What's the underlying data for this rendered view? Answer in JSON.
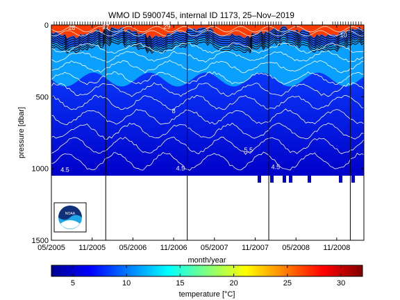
{
  "chart_data": {
    "type": "heatmap",
    "title": "WMO ID 5900745, internal ID 1173, 25–Nov–2019",
    "xlabel": "month/year",
    "ylabel": "pressure [dbar]",
    "x_ticks": [
      "05/2005",
      "11/2005",
      "05/2006",
      "11/2006",
      "05/2007",
      "11/2007",
      "05/2008",
      "11/2008"
    ],
    "y_ticks": [
      "0",
      "500",
      "1000",
      "1500"
    ],
    "y_range": [
      0,
      1500
    ],
    "y_reversed": true,
    "profile_max_pressure": 1050,
    "year_boundaries": [
      "01/2006",
      "01/2007",
      "01/2008",
      "01/2009"
    ],
    "contour_labels": [
      {
        "text": "28",
        "x": "08/2005",
        "y": 20
      },
      {
        "text": "27",
        "x": "01/2006",
        "y": 15
      },
      {
        "text": "29",
        "x": "10/2006",
        "y": 12
      },
      {
        "text": "8",
        "x": "11/2006",
        "y": 600
      },
      {
        "text": "5.5",
        "x": "10/2007",
        "y": 870
      },
      {
        "text": "4.5",
        "x": "07/2005",
        "y": 1010
      },
      {
        "text": "4.5",
        "x": "12/2006",
        "y": 1000
      },
      {
        "text": "4.5",
        "x": "02/2008",
        "y": 990
      },
      {
        "text": "10",
        "x": "12/2008",
        "y": 70
      }
    ],
    "colorbar": {
      "label": "temperature [°C]",
      "range": [
        3,
        32
      ],
      "ticks": [
        "5",
        "10",
        "15",
        "20",
        "25",
        "30"
      ],
      "colormap": "jet"
    }
  },
  "logo": {
    "text": "NOAA"
  }
}
